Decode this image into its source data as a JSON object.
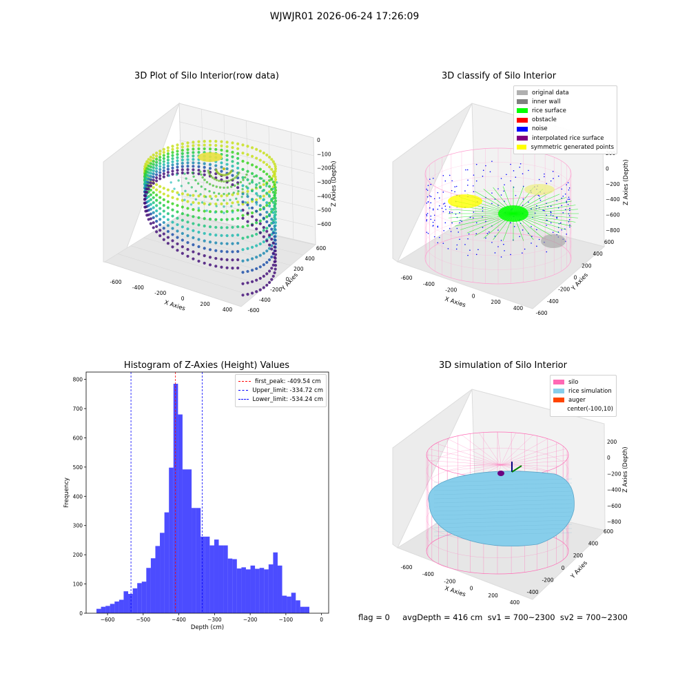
{
  "suptitle": "WJWJR01 2026-06-24 17:26:09",
  "panels": {
    "raw": {
      "title": "3D Plot of Silo Interior(row data)",
      "xlabel": "X Axies",
      "ylabel": "Y Axies",
      "zlabel": "Z Axies (Depth)",
      "xticks": [
        "-600",
        "-400",
        "-200",
        "0",
        "200",
        "400"
      ],
      "yticks": [
        "-600",
        "-400",
        "-200",
        "0",
        "200",
        "400",
        "600"
      ],
      "zticks": [
        "0",
        "−100",
        "−200",
        "−300",
        "−400",
        "−500",
        "−600"
      ]
    },
    "classify": {
      "title": "3D classify of Silo Interior",
      "xlabel": "X Axies",
      "ylabel": "Y Axies",
      "zlabel": "Z Axies (Depth)",
      "xticks": [
        "-600",
        "-400",
        "-200",
        "0",
        "200",
        "400"
      ],
      "yticks": [
        "-600",
        "-400",
        "-200",
        "0",
        "200",
        "400",
        "600"
      ],
      "zticks": [
        "200",
        "0",
        "−200",
        "−400",
        "−600",
        "−800"
      ],
      "legend": [
        {
          "label": "original data",
          "color": "#b0b0b0"
        },
        {
          "label": "inner wall",
          "color": "#808080"
        },
        {
          "label": "rice surface",
          "color": "#00ff00"
        },
        {
          "label": "obstacle",
          "color": "#ff0000"
        },
        {
          "label": "noise",
          "color": "#0000ff"
        },
        {
          "label": "interpolated rice surface",
          "color": "#800080"
        },
        {
          "label": "symmetric generated points",
          "color": "#ffff00"
        }
      ]
    },
    "histogram": {
      "title": "Histogram of Z-Axies (Height) Values",
      "xlabel": "Depth (cm)",
      "ylabel": "Frequency",
      "legend": [
        {
          "label": "first_peak: -409.54 cm",
          "color": "#ff0000"
        },
        {
          "label": "Upper_limit: -334.72 cm",
          "color": "#0000ff"
        },
        {
          "label": "Lower_limit: -534.24 cm",
          "color": "#0000ff"
        }
      ]
    },
    "simulation": {
      "title": "3D simulation of Silo Interior",
      "xlabel": "X Axies",
      "ylabel": "Y Axies",
      "zlabel": "Z Axies (Depth)",
      "xticks": [
        "-600",
        "-400",
        "-200",
        "0",
        "200",
        "400"
      ],
      "yticks": [
        "-400",
        "-200",
        "0",
        "200",
        "400",
        "600"
      ],
      "zticks": [
        "200",
        "0",
        "−200",
        "−400",
        "−600",
        "−800"
      ],
      "legend": [
        {
          "label": "silo",
          "color": "#ff69b4"
        },
        {
          "label": "rice simulation",
          "color": "#87ceeb"
        },
        {
          "label": "auger",
          "color": "#ff4500"
        },
        {
          "label": "center(-100,10)",
          "color": ""
        }
      ]
    }
  },
  "footer": "flag = 0     avgDepth = 416 cm  sv1 = 700~2300  sv2 = 700~2300",
  "chart_data": [
    {
      "type": "bar",
      "title": "Histogram of Z-Axies (Height) Values",
      "xlabel": "Depth (cm)",
      "ylabel": "Frequency",
      "xlim": [
        -660,
        20
      ],
      "ylim": [
        0,
        825
      ],
      "bin_width": 12.7,
      "bin_start": -631,
      "xticks": [
        -600,
        -500,
        -400,
        -300,
        -200,
        -100,
        0
      ],
      "yticks": [
        0,
        100,
        200,
        300,
        400,
        500,
        600,
        700,
        800
      ],
      "values": [
        15,
        22,
        25,
        32,
        40,
        46,
        75,
        66,
        85,
        103,
        108,
        155,
        188,
        230,
        275,
        345,
        498,
        785,
        680,
        492,
        492,
        360,
        360,
        262,
        262,
        232,
        252,
        232,
        232,
        187,
        185,
        153,
        157,
        150,
        163,
        152,
        155,
        150,
        167,
        208,
        163,
        60,
        57,
        70,
        44,
        22,
        22
      ],
      "vlines": [
        {
          "x": -409.54,
          "color": "#ff0000",
          "label": "first_peak: -409.54 cm"
        },
        {
          "x": -334.72,
          "color": "#0000ff",
          "label": "Upper_limit: -334.72 cm"
        },
        {
          "x": -534.24,
          "color": "#0000ff",
          "label": "Lower_limit: -534.24 cm"
        }
      ],
      "bar_color": "#0000ff",
      "legend_position": "upper right"
    }
  ]
}
